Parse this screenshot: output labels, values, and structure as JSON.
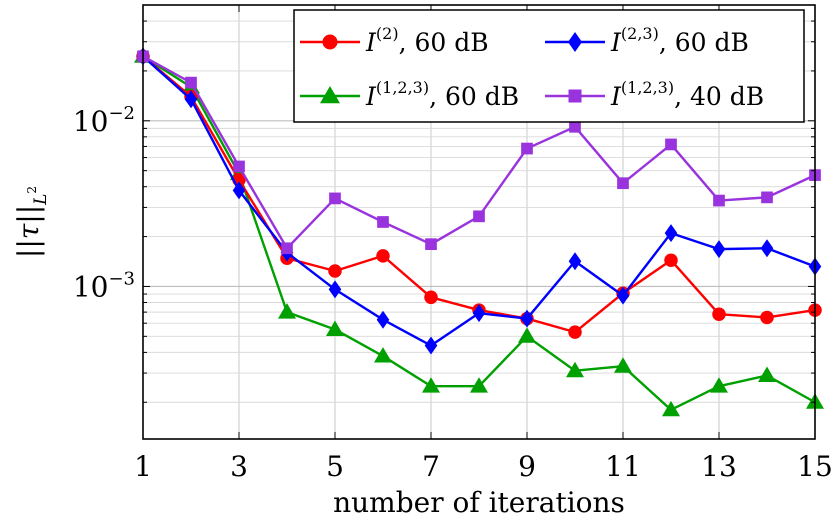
{
  "chart_data": {
    "type": "line",
    "xlabel": "number of iterations",
    "ylabel": "||τ||",
    "ylabel_sub": "L",
    "ylabel_sub_exp": "2",
    "xlim": [
      1,
      15
    ],
    "ylim": [
      0.00012,
      0.05
    ],
    "yscale": "log",
    "grid": true,
    "legend_position": "top-right",
    "x_ticks": [
      1,
      3,
      5,
      7,
      9,
      11,
      13,
      15
    ],
    "x_tick_labels": [
      "1",
      "3",
      "5",
      "7",
      "9",
      "11",
      "13",
      "15"
    ],
    "y_ticks": [
      0.001,
      0.01
    ],
    "y_tick_labels": [
      {
        "base": "10",
        "exp": "−3"
      },
      {
        "base": "10",
        "exp": "−2"
      }
    ],
    "x": [
      1,
      2,
      3,
      4,
      5,
      6,
      7,
      8,
      9,
      10,
      11,
      12,
      13,
      14,
      15
    ],
    "series": [
      {
        "name": "I(2), 60 dB",
        "legend": {
          "symbol": "I",
          "sup": "(2)",
          "suffix": ", 60 dB"
        },
        "color": "#ff0000",
        "marker": "circle",
        "values": [
          0.0245,
          0.014,
          0.0044,
          0.00148,
          0.00124,
          0.00153,
          0.00086,
          0.00072,
          0.00064,
          0.00053,
          0.00091,
          0.00144,
          0.00068,
          0.00065,
          0.00072
        ]
      },
      {
        "name": "I(2,3), 60 dB",
        "legend": {
          "symbol": "I",
          "sup": "(2,3)",
          "suffix": ", 60 dB"
        },
        "color": "#0000ff",
        "marker": "diamond",
        "values": [
          0.0245,
          0.0135,
          0.0038,
          0.0016,
          0.00096,
          0.00063,
          0.00044,
          0.00069,
          0.00064,
          0.00142,
          0.00088,
          0.0021,
          0.00168,
          0.0017,
          0.00132
        ]
      },
      {
        "name": "I(1,2,3), 60 dB",
        "legend": {
          "symbol": "I",
          "sup": "(1,2,3)",
          "suffix": ", 60 dB"
        },
        "color": "#00a000",
        "marker": "triangle",
        "values": [
          0.0245,
          0.016,
          0.0048,
          0.0007,
          0.00055,
          0.00038,
          0.00025,
          0.00025,
          0.0005,
          0.00031,
          0.00033,
          0.00018,
          0.00025,
          0.00029,
          0.0002
        ]
      },
      {
        "name": "I(1,2,3), 40 dB",
        "legend": {
          "symbol": "I",
          "sup": "(1,2,3)",
          "suffix": ", 40 dB"
        },
        "color": "#9933dd",
        "marker": "square",
        "values": [
          0.0245,
          0.017,
          0.0053,
          0.0017,
          0.0034,
          0.00245,
          0.0018,
          0.00265,
          0.0068,
          0.0092,
          0.0042,
          0.0072,
          0.0033,
          0.00345,
          0.0047
        ]
      }
    ]
  }
}
